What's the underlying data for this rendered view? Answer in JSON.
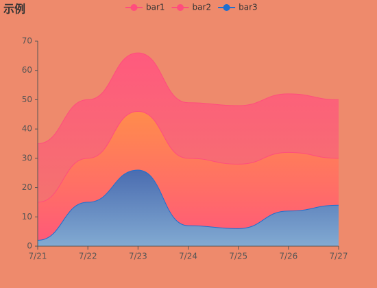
{
  "chart_data": {
    "type": "stacked-area",
    "title": "示例",
    "categories": [
      "7/21",
      "7/22",
      "7/23",
      "7/24",
      "7/25",
      "7/26",
      "7/27"
    ],
    "series": [
      {
        "name": "bar1",
        "color": "#ff4d7d",
        "gradient": [
          "#ff5a7e",
          "#f4726f"
        ],
        "values": [
          20,
          20,
          20,
          19,
          20,
          20,
          20
        ]
      },
      {
        "name": "bar2",
        "color": "#ff4d7d",
        "gradient": [
          "#ff8c4c",
          "#ff5a78"
        ],
        "values": [
          13,
          15,
          20,
          23,
          22,
          20,
          16
        ]
      },
      {
        "name": "bar3",
        "color": "#1e6fd0",
        "gradient": [
          "#4a6cb0",
          "#82aad2"
        ],
        "values": [
          2,
          15,
          26,
          7,
          6,
          12,
          14
        ]
      }
    ],
    "ylim": [
      0,
      70
    ],
    "yticks": [
      0,
      10,
      20,
      30,
      40,
      50,
      60,
      70
    ],
    "smooth": true
  }
}
